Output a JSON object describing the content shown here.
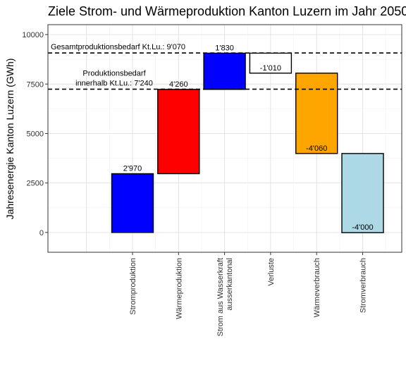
{
  "chart_data": {
    "type": "bar",
    "subtype": "waterfall",
    "title": "Ziele Strom- und Wärmeproduktion Kanton Luzern im Jahr 2050",
    "xlabel": "",
    "ylabel": "Jahresenergie Kanton Luzern (GWh)",
    "ylim": [
      -1000,
      10500
    ],
    "yticks": [
      0,
      2500,
      5000,
      7500,
      10000
    ],
    "grid": true,
    "categories": [
      "Stromproduktion",
      "Wärmeproduktion",
      "Strom aus Wasserkraft ausserkantonal",
      "Verluste",
      "Wärmeverbrauch",
      "Stromverbrauch"
    ],
    "tick_lines": [
      [
        "Stromproduktion"
      ],
      [
        "Wärmeproduktion"
      ],
      [
        "Strom aus Wasserkraft",
        "ausserkantonal"
      ],
      [
        "Verluste"
      ],
      [
        "Wärmeverbrauch"
      ],
      [
        "Stromverbrauch"
      ]
    ],
    "bars": [
      {
        "start": 0,
        "end": 2970,
        "label": "2'970",
        "color": "#0000ff"
      },
      {
        "start": 2970,
        "end": 7230,
        "label": "4'260",
        "color": "#ff0000"
      },
      {
        "start": 7230,
        "end": 9060,
        "label": "1'830",
        "color": "#0000ff"
      },
      {
        "start": 9060,
        "end": 8050,
        "label": "-1'010",
        "color": "#ffffff"
      },
      {
        "start": 8050,
        "end": 3990,
        "label": "-4'060",
        "color": "#ffa500"
      },
      {
        "start": 3990,
        "end": -10,
        "label": "-4'000",
        "color": "#add8e6"
      }
    ],
    "reference_lines": [
      {
        "value": 9070,
        "label_lines": [
          "Gesamtproduktionsbedarf Kt.Lu.: 9'070"
        ]
      },
      {
        "value": 7240,
        "label_lines": [
          "Produktionsbedarf",
          "innerhalb Kt.Lu.: 7'240"
        ]
      }
    ]
  }
}
